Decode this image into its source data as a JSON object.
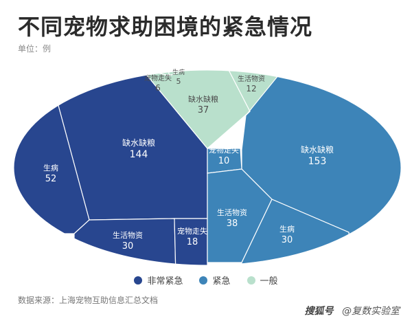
{
  "title": "不同宠物求助困境的紧急情况",
  "unit": "单位：例",
  "source": "数据来源：上海宠物互助信息汇总文档",
  "watermark": {
    "brand": "搜狐号",
    "author": "@复数实验室"
  },
  "colors": {
    "非常紧急": "#28468f",
    "紧急": "#3d84b8",
    "一般": "#b9e0cc",
    "border": "#ffffff"
  },
  "chart_data": {
    "type": "pie",
    "title": "不同宠物求助困境的紧急情况",
    "legend": [
      "非常紧急",
      "紧急",
      "一般"
    ],
    "legend_position": "bottom",
    "groups": [
      {
        "name": "非常紧急",
        "items": [
          {
            "name": "缺水缺粮",
            "value": 144
          },
          {
            "name": "生病",
            "value": 52
          },
          {
            "name": "生活物资",
            "value": 30
          },
          {
            "name": "宠物走失",
            "value": 18
          }
        ]
      },
      {
        "name": "紧急",
        "items": [
          {
            "name": "缺水缺粮",
            "value": 153
          },
          {
            "name": "宠物走失",
            "value": 10
          },
          {
            "name": "生活物资",
            "value": 38
          },
          {
            "name": "生病",
            "value": 30
          }
        ]
      },
      {
        "name": "一般",
        "items": [
          {
            "name": "缺水缺粮",
            "value": 37
          },
          {
            "name": "生活物资",
            "value": 12
          },
          {
            "name": "宠物走失",
            "value": 6
          },
          {
            "name": "生病",
            "value": 5
          }
        ]
      }
    ]
  }
}
